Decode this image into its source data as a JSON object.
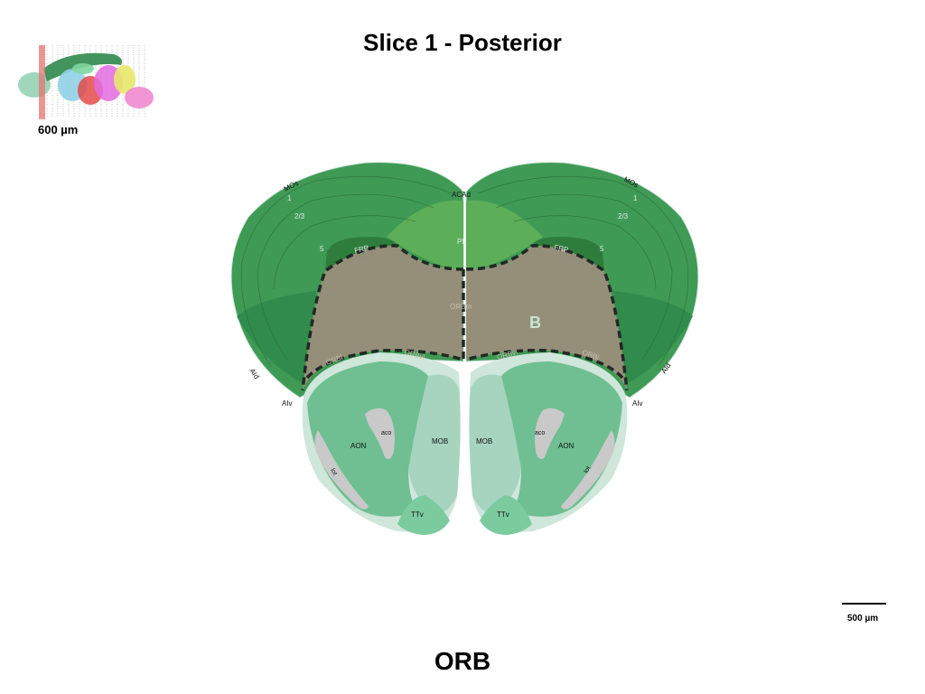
{
  "title": "Slice 1 - Posterior",
  "subject": "ORB",
  "thumbnail": {
    "depth_label": "600 µm"
  },
  "scale_bar": {
    "label": "500 µm"
  },
  "region_labels": {
    "mos_left": "MOs",
    "mos_right": "MOs",
    "layer1_left": "1",
    "layer1_right": "1",
    "layer23_left": "2/3",
    "layer23_right": "2/3",
    "layer5_left": "5",
    "layer5_right": "5",
    "acad": "ACAd",
    "pl": "PL",
    "frp_left": "FRP",
    "frp_right": "FRP",
    "orbm": "ORBm",
    "orbl_left": "ORBl",
    "orbl_right": "ORBl",
    "orbvl_left": "ORBvl",
    "orbvl_right": "ORBvl",
    "aid_left": "AId",
    "aid_right": "AId",
    "aiv_left": "AIv",
    "aiv_right": "AIv",
    "aon_left": "AON",
    "aon_right": "AON",
    "aco_left": "aco",
    "aco_right": "aco",
    "mob_left": "MOB",
    "mob_right": "MOB",
    "lot_left": "lot",
    "lot_right": "lot",
    "ttv_left": "TTv",
    "ttv_right": "TTv",
    "highlight": "B"
  },
  "colors": {
    "cortex": "#3f9a55",
    "cortex_dark": "#2f8a4b",
    "pl": "#5cae58",
    "frp": "#2e7d3d",
    "orb_highlight": "#9a8e7c",
    "aon": "#6fbf92",
    "mob": "#a6d4bf",
    "ttv": "#7ccb9f",
    "fiber": "#c9c9c9",
    "border_light": "#cfe6da"
  }
}
